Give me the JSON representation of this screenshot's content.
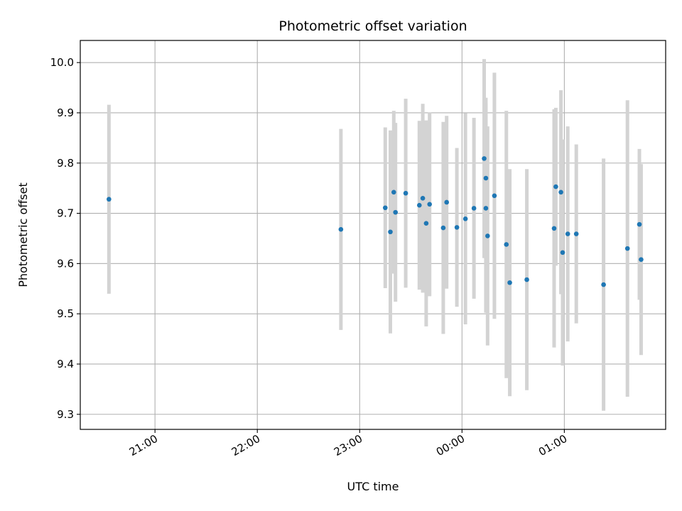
{
  "chart_data": {
    "type": "scatter",
    "title": "Photometric offset variation",
    "xlabel": "UTC time",
    "ylabel": "Photometric offset",
    "x_tick_labels": [
      "21:00",
      "22:00",
      "23:00",
      "00:00",
      "01:00"
    ],
    "x_tick_hours": [
      21,
      22,
      23,
      24,
      25
    ],
    "y_ticks": [
      9.3,
      9.4,
      9.5,
      9.6,
      9.7,
      9.8,
      9.9,
      10.0
    ],
    "y_tick_labels": [
      "9.3",
      "9.4",
      "9.5",
      "9.6",
      "9.7",
      "9.8",
      "9.9",
      "10.0"
    ],
    "xlim_hours": [
      20.27,
      25.99
    ],
    "ylim": [
      9.27,
      10.044
    ],
    "grid": true,
    "point_color": "#1f77b4",
    "errorbar_color": "#d3d3d3",
    "points": [
      {
        "t": "20:33",
        "y": 9.728,
        "err": 0.188
      },
      {
        "t": "22:49",
        "y": 9.668,
        "err": 0.2
      },
      {
        "t": "23:15",
        "y": 9.711,
        "err": 0.16
      },
      {
        "t": "23:18",
        "y": 9.663,
        "err": 0.202
      },
      {
        "t": "23:20",
        "y": 9.742,
        "err": 0.162
      },
      {
        "t": "23:21",
        "y": 9.702,
        "err": 0.178
      },
      {
        "t": "23:27",
        "y": 9.74,
        "err": 0.188
      },
      {
        "t": "23:35",
        "y": 9.716,
        "err": 0.168
      },
      {
        "t": "23:37",
        "y": 9.73,
        "err": 0.188
      },
      {
        "t": "23:39",
        "y": 9.68,
        "err": 0.205
      },
      {
        "t": "23:41",
        "y": 9.718,
        "err": 0.183
      },
      {
        "t": "23:49",
        "y": 9.671,
        "err": 0.211
      },
      {
        "t": "23:51",
        "y": 9.722,
        "err": 0.172
      },
      {
        "t": "23:57",
        "y": 9.672,
        "err": 0.158
      },
      {
        "t": "00:02",
        "y": 9.689,
        "err": 0.21
      },
      {
        "t": "00:07",
        "y": 9.71,
        "err": 0.18
      },
      {
        "t": "00:13",
        "y": 9.809,
        "err": 0.198
      },
      {
        "t": "00:14",
        "y": 9.77,
        "err": 0.16
      },
      {
        "t": "00:14",
        "y": 9.71,
        "err": 0.208
      },
      {
        "t": "00:15",
        "y": 9.655,
        "err": 0.218
      },
      {
        "t": "00:19",
        "y": 9.735,
        "err": 0.245
      },
      {
        "t": "00:26",
        "y": 9.638,
        "err": 0.266
      },
      {
        "t": "00:28",
        "y": 9.562,
        "err": 0.226
      },
      {
        "t": "00:38",
        "y": 9.568,
        "err": 0.22
      },
      {
        "t": "00:54",
        "y": 9.67,
        "err": 0.237
      },
      {
        "t": "00:55",
        "y": 9.753,
        "err": 0.157
      },
      {
        "t": "00:58",
        "y": 9.742,
        "err": 0.203
      },
      {
        "t": "00:59",
        "y": 9.622,
        "err": 0.225
      },
      {
        "t": "01:02",
        "y": 9.659,
        "err": 0.214
      },
      {
        "t": "01:07",
        "y": 9.659,
        "err": 0.178
      },
      {
        "t": "01:23",
        "y": 9.558,
        "err": 0.251
      },
      {
        "t": "01:37",
        "y": 9.63,
        "err": 0.295
      },
      {
        "t": "01:44",
        "y": 9.678,
        "err": 0.15
      },
      {
        "t": "01:45",
        "y": 9.608,
        "err": 0.19
      }
    ]
  }
}
